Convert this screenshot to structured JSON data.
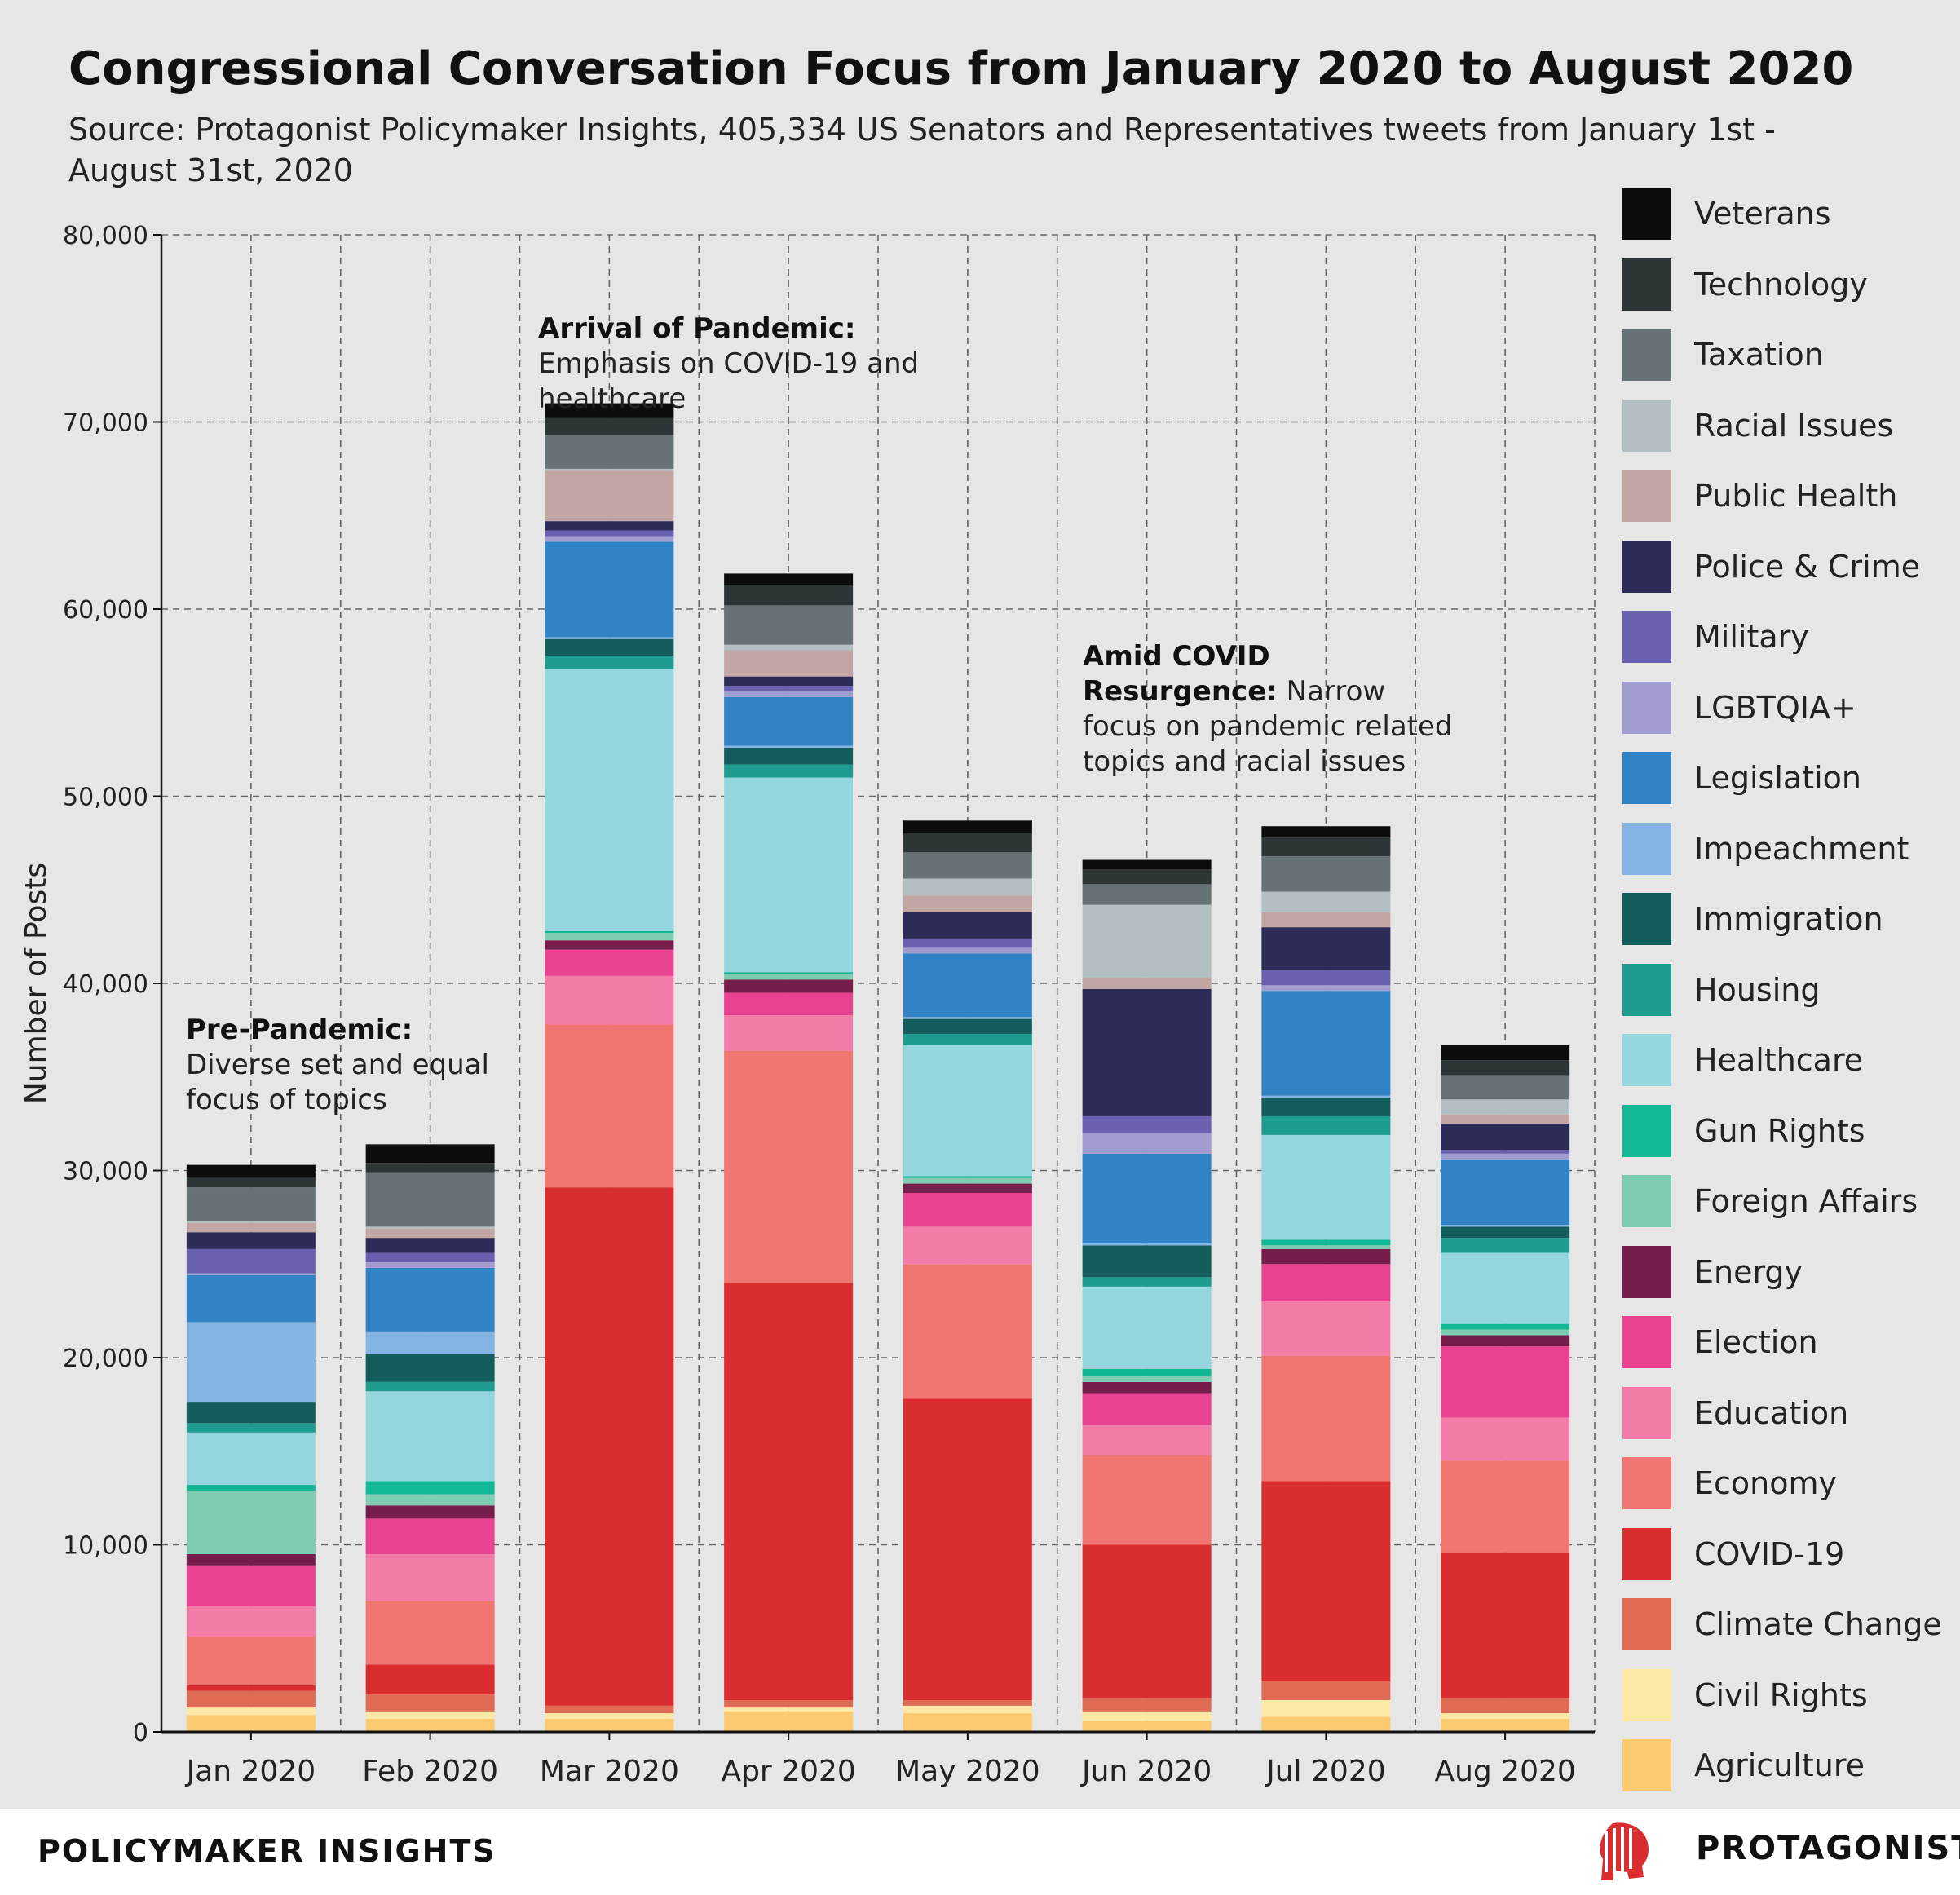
{
  "title": "Congressional Conversation Focus from January 2020 to August 2020",
  "subtitle": "Source: Protagonist Policymaker Insights, 405,334 US Senators and Representatives tweets from January 1st - August 31st, 2020",
  "footer": {
    "left_brand": "POLICYMAKER INSIGHTS",
    "right_brand": "PROTAGONIST"
  },
  "annotations": [
    {
      "bold": "Pre-Pandemic:",
      "text": " Diverse set and equal focus of topics"
    },
    {
      "bold": "Arrival of Pandemic:",
      "text": " Emphasis on COVID-19  and healthcare"
    },
    {
      "bold": "Amid COVID Resurgence:",
      "text": " Narrow focus on pandemic related topics and racial issues"
    }
  ],
  "chart_data": {
    "type": "bar",
    "stacked": true,
    "ylabel": "Number of Posts",
    "xlabel": "",
    "ylim": [
      0,
      80000
    ],
    "yticks": [
      0,
      10000,
      20000,
      30000,
      40000,
      50000,
      60000,
      70000,
      80000
    ],
    "ytick_labels": [
      "0",
      "10,000",
      "20,000",
      "30,000",
      "40,000",
      "50,000",
      "60,000",
      "70,000",
      "80,000"
    ],
    "grid": true,
    "legend_position": "right",
    "categories": [
      "Jan 2020",
      "Feb 2020",
      "Mar 2020",
      "Apr 2020",
      "May 2020",
      "Jun 2020",
      "Jul 2020",
      "Aug 2020"
    ],
    "series": [
      {
        "name": "Agriculture",
        "color": "#fccb6f",
        "values": [
          900,
          700,
          700,
          1100,
          1000,
          600,
          800,
          700
        ]
      },
      {
        "name": "Civil Rights",
        "color": "#fde9a6",
        "values": [
          400,
          400,
          300,
          200,
          400,
          500,
          900,
          300
        ]
      },
      {
        "name": "Climate Change",
        "color": "#e06b55",
        "values": [
          900,
          900,
          400,
          400,
          300,
          700,
          1000,
          800
        ]
      },
      {
        "name": "COVID-19",
        "color": "#da2d2f",
        "values": [
          300,
          1600,
          27700,
          22300,
          16100,
          8200,
          10700,
          7800
        ]
      },
      {
        "name": "Economy",
        "color": "#f17672",
        "values": [
          2600,
          3400,
          8700,
          12400,
          7200,
          4800,
          6700,
          4900
        ]
      },
      {
        "name": "Education",
        "color": "#f27ba8",
        "values": [
          1600,
          2500,
          2600,
          1900,
          2000,
          1600,
          2900,
          2300
        ]
      },
      {
        "name": "Election",
        "color": "#e94290",
        "values": [
          2200,
          1900,
          1400,
          1200,
          1800,
          1700,
          2000,
          3800
        ]
      },
      {
        "name": "Energy",
        "color": "#761d4b",
        "values": [
          600,
          700,
          500,
          700,
          500,
          600,
          800,
          600
        ]
      },
      {
        "name": "Foreign Affairs",
        "color": "#7ecdb3",
        "values": [
          3400,
          600,
          400,
          300,
          300,
          300,
          200,
          300
        ]
      },
      {
        "name": "Gun Rights",
        "color": "#12b893",
        "values": [
          300,
          700,
          100,
          100,
          100,
          400,
          300,
          300
        ]
      },
      {
        "name": "Healthcare",
        "color": "#93d6de",
        "values": [
          2800,
          4800,
          14000,
          10400,
          7000,
          4400,
          5600,
          3800
        ]
      },
      {
        "name": "Housing",
        "color": "#1f9c90",
        "values": [
          500,
          500,
          700,
          700,
          600,
          500,
          1000,
          800
        ]
      },
      {
        "name": "Immigration",
        "color": "#135e5d",
        "values": [
          1100,
          1500,
          900,
          900,
          800,
          1700,
          1000,
          600
        ]
      },
      {
        "name": "Impeachment",
        "color": "#84b4e3",
        "values": [
          4300,
          1200,
          100,
          100,
          100,
          100,
          100,
          100
        ]
      },
      {
        "name": "Legislation",
        "color": "#3283c6",
        "values": [
          2500,
          3400,
          5100,
          2600,
          3400,
          4800,
          5600,
          3500
        ]
      },
      {
        "name": "LGBTQIA+",
        "color": "#a09cd0",
        "values": [
          100,
          300,
          300,
          300,
          300,
          1100,
          300,
          300
        ]
      },
      {
        "name": "Military",
        "color": "#6a60b0",
        "values": [
          1300,
          500,
          300,
          300,
          500,
          900,
          800,
          200
        ]
      },
      {
        "name": "Police & Crime",
        "color": "#2d2c58",
        "values": [
          900,
          800,
          500,
          500,
          1400,
          6800,
          2300,
          1400
        ]
      },
      {
        "name": "Public Health",
        "color": "#c2a6a3",
        "values": [
          500,
          500,
          2700,
          1400,
          900,
          600,
          800,
          500
        ]
      },
      {
        "name": "Racial Issues",
        "color": "#b3bfc3",
        "values": [
          100,
          100,
          100,
          300,
          900,
          3900,
          1100,
          800
        ]
      },
      {
        "name": "Taxation",
        "color": "#667275",
        "values": [
          1800,
          2900,
          1800,
          2100,
          1400,
          1100,
          1900,
          1300
        ]
      },
      {
        "name": "Technology",
        "color": "#2e3537",
        "values": [
          500,
          500,
          900,
          1100,
          1000,
          800,
          1000,
          800
        ]
      },
      {
        "name": "Veterans",
        "color": "#0c0c0d",
        "values": [
          700,
          1000,
          800,
          600,
          700,
          500,
          600,
          800
        ]
      }
    ]
  }
}
